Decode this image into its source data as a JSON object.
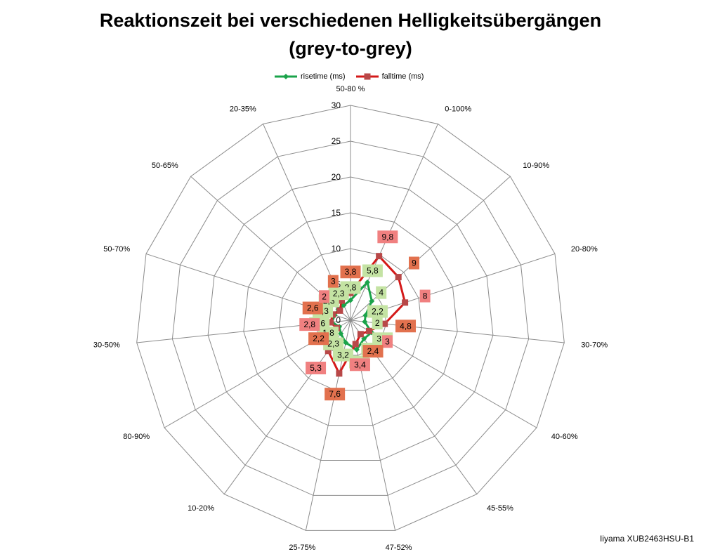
{
  "title_line1": "Reaktionszeit bei verschiedenen Helligkeitsübergängen",
  "title_line2": "(grey-to-grey)",
  "footer": "Iiyama XUB2463HSU-B1",
  "colors": {
    "rise": "#1aa34a",
    "fall": "#d41919",
    "rise_label_bg": "#c4e3a3",
    "fall_label_bg": "#f08080",
    "fall_label_bg_alt": "#e2714e"
  },
  "chart_data": {
    "type": "radar",
    "title": "Reaktionszeit bei verschiedenen Helligkeitsübergängen (grey-to-grey)",
    "categories": [
      "50-80 %",
      "0-100%",
      "10-90%",
      "20-80%",
      "30-70%",
      "40-60%",
      "45-55%",
      "47-52%",
      "25-75%",
      "10-20%",
      "80-90%",
      "30-50%",
      "50-70%",
      "50-65%",
      "20-35%"
    ],
    "rlim": [
      0,
      30
    ],
    "rticks": [
      0,
      5,
      10,
      15,
      20,
      25,
      30
    ],
    "grid": true,
    "legend_position": "top",
    "series": [
      {
        "name": "risetime (ms)",
        "values": [
          2.8,
          5.8,
          4,
          2.2,
          2,
          3.4,
          3.2,
          4.2,
          3.2,
          2.3,
          1.8,
          2.6,
          2.3,
          2.3,
          2.3
        ]
      },
      {
        "name": "falltime (ms)",
        "values": [
          3.8,
          9.8,
          9,
          8,
          4.8,
          3,
          2.4,
          3.4,
          7.6,
          5.3,
          2.2,
          2.8,
          2.6,
          2,
          3
        ]
      }
    ]
  }
}
